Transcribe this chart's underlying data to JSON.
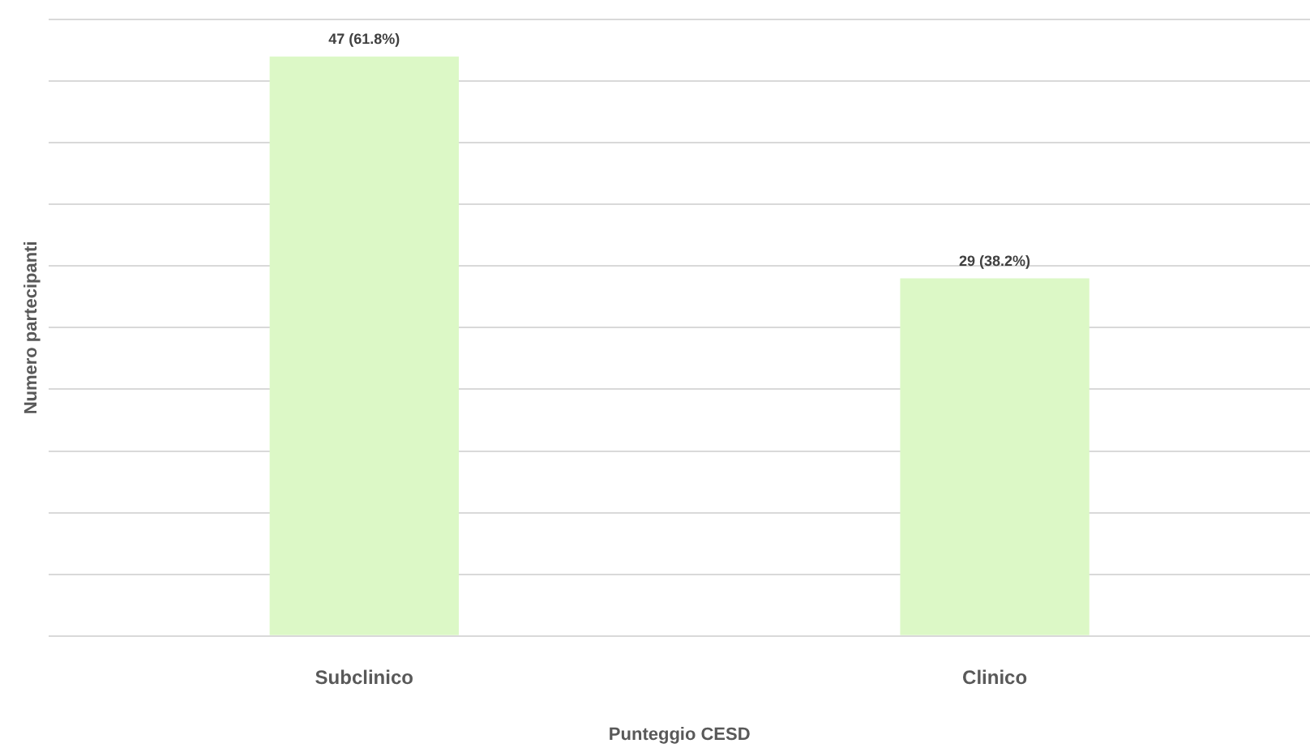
{
  "chart_data": {
    "type": "bar",
    "xlabel": "Punteggio CESD",
    "ylabel": "Numero partecipanti",
    "categories": [
      "Subclinico",
      "Clinico"
    ],
    "values": [
      47,
      29
    ],
    "color": "#dcf8c6",
    "value_labels": [
      "47 (61.8%)",
      "29 (38.2%)"
    ],
    "ylim": [
      0,
      50
    ],
    "yticks": [
      {
        "value": 0,
        "label": null
      },
      {
        "value": 5,
        "label": null
      },
      {
        "value": 10,
        "label": null
      },
      {
        "value": 15,
        "label": null
      },
      {
        "value": 20,
        "label": null
      },
      {
        "value": 25,
        "label": null
      },
      {
        "value": 30,
        "label": null
      },
      {
        "value": 35,
        "label": null
      },
      {
        "value": 40,
        "label": null
      },
      {
        "value": 45,
        "label": null
      },
      {
        "value": 50,
        "label": null
      }
    ],
    "grid": "y",
    "tick_labels": "x"
  }
}
